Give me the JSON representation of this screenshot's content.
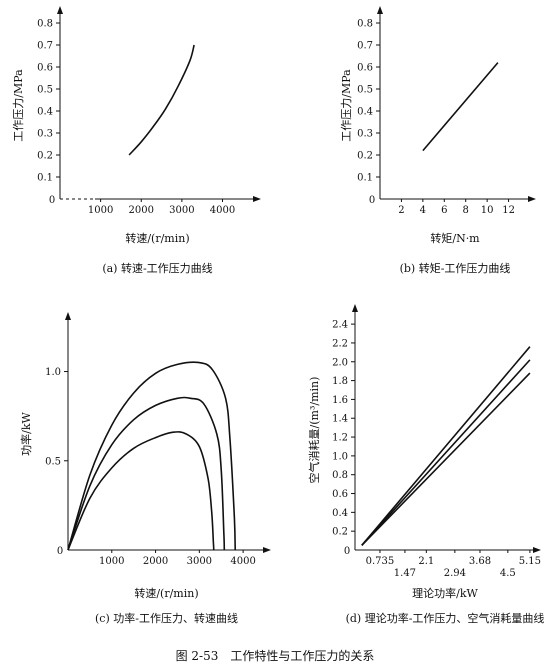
{
  "figure": {
    "caption": "图 2-53　工作特性与工作压力的关系"
  },
  "chart_data": [
    {
      "id": "a",
      "type": "line",
      "caption": "(a) 转速-工作压力曲线",
      "xlabel": "转速/(r/min)",
      "ylabel": "工作压力/MPa",
      "xlim": [
        0,
        4800
      ],
      "ylim": [
        0,
        0.85
      ],
      "xticks": [
        1000,
        2000,
        3000,
        4000
      ],
      "xtick_labels": [
        "1000",
        "2000",
        "3000",
        "4000"
      ],
      "yticks": [
        0.1,
        0.2,
        0.3,
        0.4,
        0.5,
        0.6,
        0.7,
        0.8
      ],
      "ytick_labels": [
        "0.1",
        "0.2",
        "0.3",
        "0.4",
        "0.5",
        "0.6",
        "0.7",
        "0.8"
      ],
      "origin_label": "0",
      "grid": false,
      "series": [
        {
          "x": [
            1700,
            2000,
            2300,
            2600,
            2900,
            3200,
            3300
          ],
          "y": [
            0.2,
            0.26,
            0.33,
            0.41,
            0.51,
            0.63,
            0.7
          ]
        }
      ]
    },
    {
      "id": "b",
      "type": "line",
      "caption": "(b) 转矩-工作压力曲线",
      "xlabel": "转矩/N·m",
      "ylabel": "工作压力/MPa",
      "xlim": [
        0,
        14
      ],
      "ylim": [
        0,
        0.85
      ],
      "xticks": [
        2,
        4,
        6,
        8,
        10,
        12
      ],
      "xtick_labels": [
        "2",
        "4",
        "6",
        "8",
        "10",
        "12"
      ],
      "yticks": [
        0.1,
        0.2,
        0.3,
        0.4,
        0.5,
        0.6,
        0.7,
        0.8
      ],
      "ytick_labels": [
        "0.1",
        "0.2",
        "0.3",
        "0.4",
        "0.5",
        "0.6",
        "0.7",
        "0.8"
      ],
      "origin_label": "0",
      "grid": false,
      "series": [
        {
          "x": [
            4,
            11
          ],
          "y": [
            0.22,
            0.62
          ]
        }
      ]
    },
    {
      "id": "c",
      "type": "line",
      "caption": "(c) 功率-工作压力、转速曲线",
      "xlabel": "转速/(r/min)",
      "ylabel": "功率/kW",
      "xlim": [
        0,
        4500
      ],
      "ylim": [
        0,
        1.3
      ],
      "xticks": [
        1000,
        2000,
        3000,
        4000
      ],
      "xtick_labels": [
        "1000",
        "2000",
        "3000",
        "4000"
      ],
      "yticks": [
        0.5,
        1.0
      ],
      "ytick_labels": [
        "0.5",
        "1.0"
      ],
      "origin_label": "0",
      "grid": false,
      "series": [
        {
          "x": [
            0,
            500,
            1000,
            1500,
            2000,
            2500,
            3000,
            3300,
            3600,
            3700,
            3800,
            3820
          ],
          "y": [
            0,
            0.42,
            0.7,
            0.88,
            0.99,
            1.04,
            1.05,
            1.01,
            0.85,
            0.62,
            0.18,
            0
          ]
        },
        {
          "x": [
            0,
            500,
            1000,
            1500,
            2000,
            2500,
            2800,
            3100,
            3400,
            3500,
            3560,
            3570
          ],
          "y": [
            0,
            0.36,
            0.59,
            0.73,
            0.81,
            0.85,
            0.85,
            0.82,
            0.65,
            0.45,
            0.1,
            0
          ]
        },
        {
          "x": [
            0,
            500,
            1000,
            1500,
            2000,
            2400,
            2700,
            3000,
            3200,
            3280,
            3320,
            3330
          ],
          "y": [
            0,
            0.29,
            0.46,
            0.57,
            0.63,
            0.66,
            0.65,
            0.58,
            0.4,
            0.22,
            0.05,
            0
          ]
        }
      ]
    },
    {
      "id": "d",
      "type": "line",
      "caption": "(d) 理论功率-工作压力、空气消耗量曲线",
      "xlabel": "理论功率/kW",
      "ylabel": "空气消耗量/(m³/min)",
      "xlim": [
        0,
        5.3
      ],
      "ylim": [
        0,
        2.55
      ],
      "xticks": [
        0.735,
        1.47,
        2.1,
        2.94,
        3.68,
        4.5,
        5.15
      ],
      "xtick_labels": [
        "0.735",
        "1.47",
        "2.1",
        "2.94",
        "3.68",
        "4.5",
        "5.15"
      ],
      "yticks": [
        0.2,
        0.4,
        0.6,
        0.8,
        1.0,
        1.2,
        1.4,
        1.6,
        1.8,
        2.0,
        2.2,
        2.4
      ],
      "ytick_labels": [
        "0.2",
        "0.4",
        "0.6",
        "0.8",
        "1.0",
        "1.2",
        "1.4",
        "1.6",
        "1.8",
        "2.0",
        "2.2",
        "2.4"
      ],
      "origin_label": "0",
      "grid": false,
      "series": [
        {
          "x": [
            0.2,
            5.15
          ],
          "y": [
            0.05,
            2.16
          ]
        },
        {
          "x": [
            0.2,
            5.15
          ],
          "y": [
            0.05,
            2.02
          ]
        },
        {
          "x": [
            0.2,
            5.15
          ],
          "y": [
            0.05,
            1.88
          ]
        }
      ]
    }
  ]
}
